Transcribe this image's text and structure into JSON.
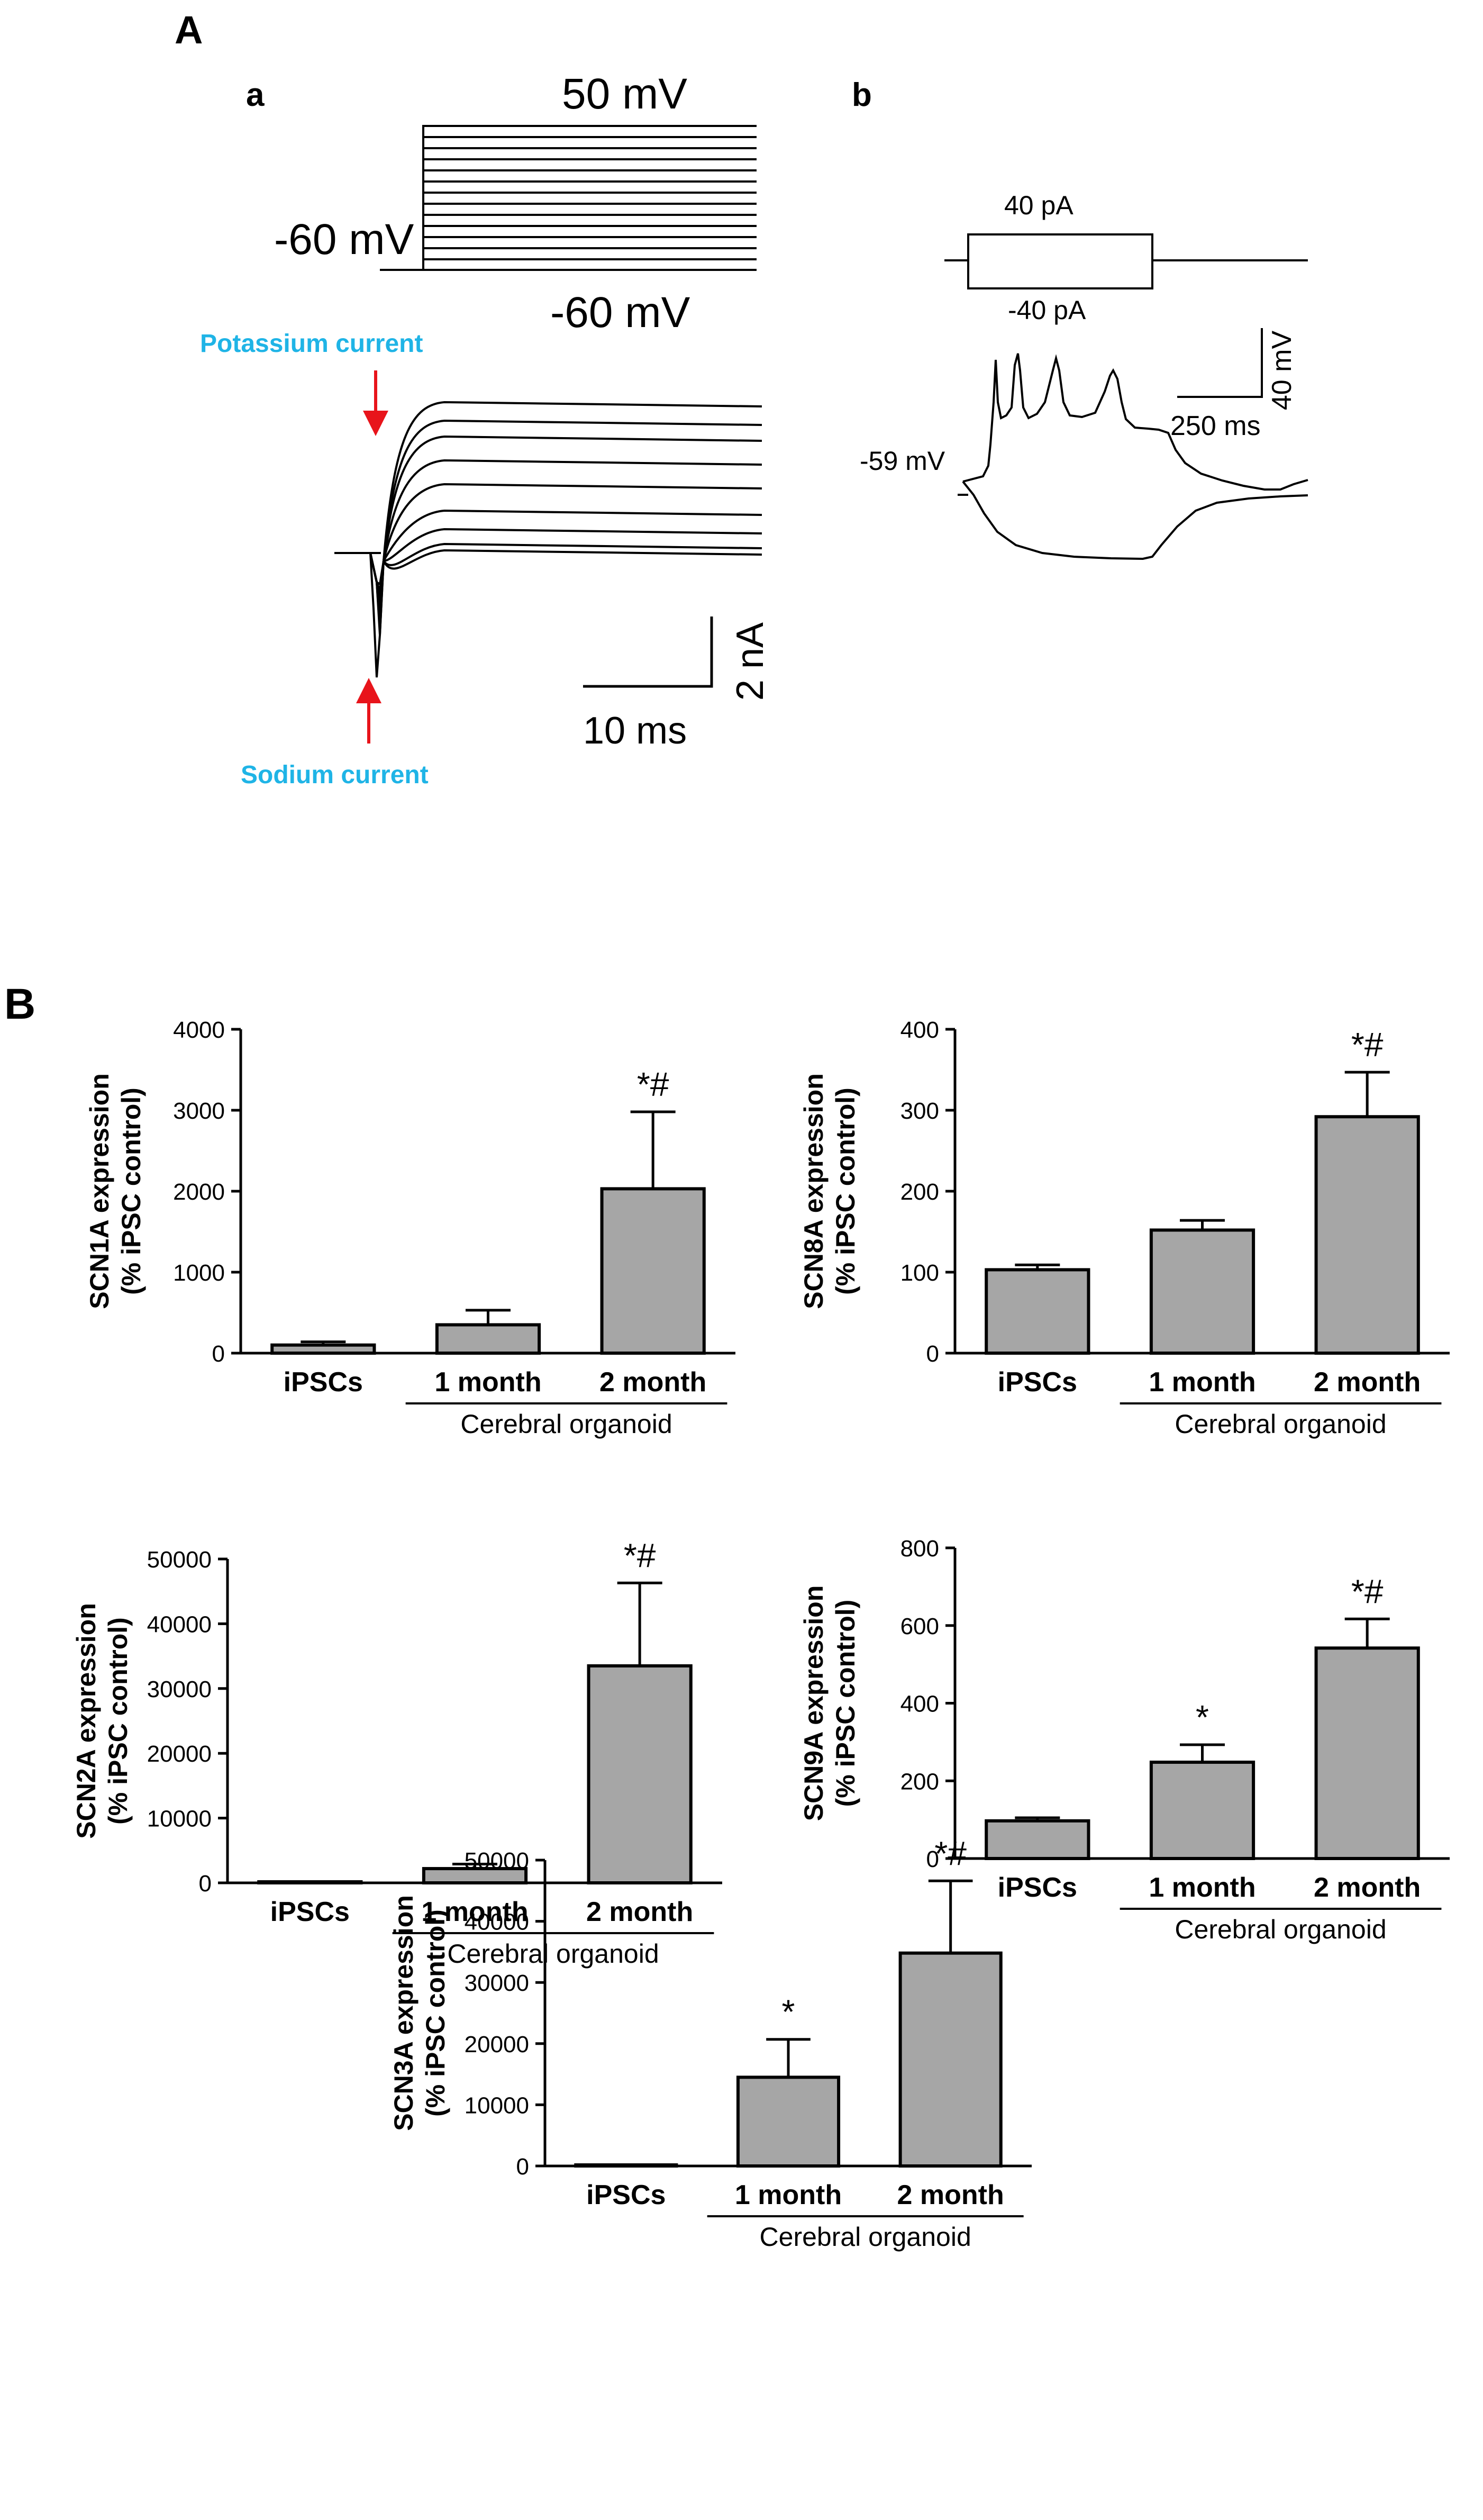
{
  "panel_A": {
    "label": "A",
    "sub_a": {
      "label": "a",
      "voltage_top": "50 mV",
      "voltage_hold": "-60 mV",
      "voltage_bottom": "-60 mV",
      "potassium_label": "Potassium current",
      "sodium_label": "Sodium current",
      "scale_y": "2 nA",
      "scale_x": "10 ms"
    },
    "sub_b": {
      "label": "b",
      "current_pos": "40 pA",
      "current_neg": "-40 pA",
      "resting": "-59 mV",
      "scale_y": "40 mV",
      "scale_x": "250 ms"
    }
  },
  "panel_B": {
    "label": "B",
    "group_label": "Cerebral organoid",
    "ylabel_line2": "(% iPSC control)"
  },
  "colors": {
    "bar_fill": "#a6a6a6",
    "axis": "#000000",
    "annotation": "#1fb4e6",
    "arrow": "#e8141b"
  },
  "chart_data": [
    {
      "type": "bar",
      "gene": "SCN1A",
      "ylabel": "SCN1A expression",
      "categories": [
        "iPSCs",
        "1 month",
        "2 month"
      ],
      "values": [
        100,
        350,
        2030
      ],
      "errors": [
        40,
        180,
        950
      ],
      "markers": [
        "",
        "",
        "*#"
      ],
      "ylim": [
        0,
        4000
      ],
      "yticks": [
        "0",
        "1000",
        "2000",
        "3000",
        "4000"
      ]
    },
    {
      "type": "bar",
      "gene": "SCN8A",
      "ylabel": "SCN8A expression",
      "categories": [
        "iPSCs",
        "1 month",
        "2 month"
      ],
      "values": [
        103,
        152,
        292
      ],
      "errors": [
        6,
        12,
        55
      ],
      "markers": [
        "",
        "",
        "*#"
      ],
      "ylim": [
        0,
        400
      ],
      "yticks": [
        "0",
        "100",
        "200",
        "300",
        "400"
      ]
    },
    {
      "type": "bar",
      "gene": "SCN2A",
      "ylabel": "SCN2A expression",
      "categories": [
        "iPSCs",
        "1 month",
        "2 month"
      ],
      "values": [
        100,
        2200,
        33500
      ],
      "errors": [
        100,
        700,
        12800
      ],
      "markers": [
        "",
        "",
        "*#"
      ],
      "ylim": [
        0,
        50000
      ],
      "yticks": [
        "0",
        "10000",
        "20000",
        "30000",
        "40000",
        "50000"
      ]
    },
    {
      "type": "bar",
      "gene": "SCN9A",
      "ylabel": "SCN9A expression",
      "categories": [
        "iPSCs",
        "1 month",
        "2 month"
      ],
      "values": [
        97,
        248,
        542
      ],
      "errors": [
        8,
        45,
        75
      ],
      "markers": [
        "",
        "*",
        "*#"
      ],
      "ylim": [
        0,
        800
      ],
      "yticks": [
        "0",
        "200",
        "400",
        "600",
        "800"
      ]
    },
    {
      "type": "bar",
      "gene": "SCN3A",
      "ylabel": "SCN3A expression",
      "categories": [
        "iPSCs",
        "1 month",
        "2 month"
      ],
      "values": [
        100,
        14500,
        34800
      ],
      "errors": [
        50,
        6200,
        11800
      ],
      "markers": [
        "",
        "*",
        "*#"
      ],
      "ylim": [
        0,
        50000
      ],
      "yticks": [
        "0",
        "10000",
        "20000",
        "30000",
        "40000",
        "50000"
      ]
    }
  ]
}
